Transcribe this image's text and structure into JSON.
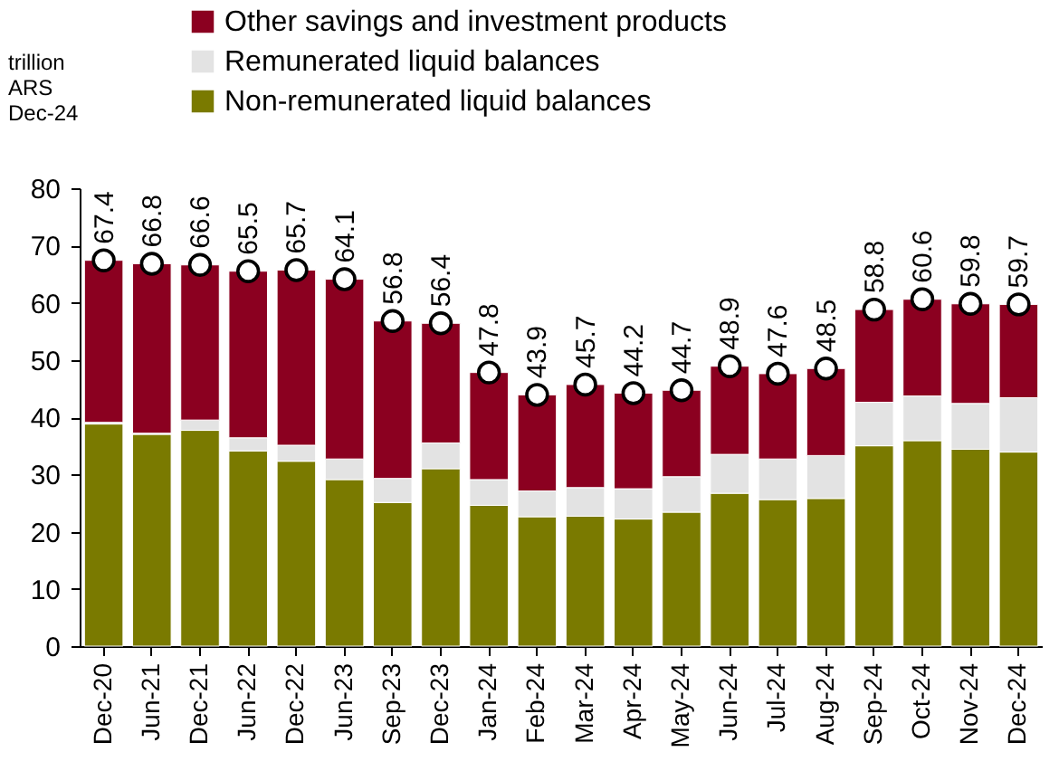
{
  "chart_data": {
    "type": "bar",
    "stacked": true,
    "ylabel": "trillion\nARS\nDec-24",
    "categories": [
      "Dec-20",
      "Jun-21",
      "Dec-21",
      "Jun-22",
      "Dec-22",
      "Jun-23",
      "Sep-23",
      "Dec-23",
      "Jan-24",
      "Feb-24",
      "Mar-24",
      "Apr-24",
      "May-24",
      "Jun-24",
      "Jul-24",
      "Aug-24",
      "Sep-24",
      "Oct-24",
      "Nov-24",
      "Dec-24"
    ],
    "series": [
      {
        "name": "Non-remunerated liquid balances",
        "color": "#7a7a00",
        "values": [
          38.8,
          37.0,
          37.7,
          34.1,
          32.3,
          29.1,
          25.1,
          31.0,
          24.6,
          22.6,
          22.7,
          22.2,
          23.4,
          26.7,
          25.6,
          25.8,
          35.0,
          35.9,
          34.4,
          33.9
        ]
      },
      {
        "name": "Remunerated liquid balances",
        "color": "#e3e3e3",
        "values": [
          0.3,
          0.2,
          1.8,
          2.3,
          2.8,
          3.6,
          4.2,
          4.5,
          4.5,
          4.5,
          5.0,
          5.3,
          6.2,
          6.8,
          7.1,
          7.5,
          7.6,
          7.8,
          8.0,
          9.5
        ]
      },
      {
        "name": "Other savings and investment products",
        "color": "#8b0020",
        "values": [
          28.3,
          29.6,
          27.1,
          29.1,
          30.6,
          31.4,
          27.5,
          20.9,
          18.7,
          16.8,
          18.0,
          16.7,
          15.1,
          15.4,
          14.9,
          15.2,
          16.2,
          16.9,
          17.4,
          16.3
        ]
      },
      {
        "type": "scatter",
        "color": "#ffffff",
        "values": [
          67.4,
          66.8,
          66.6,
          65.5,
          65.7,
          64.1,
          56.8,
          56.4,
          47.8,
          43.9,
          45.7,
          44.2,
          44.7,
          48.9,
          47.6,
          48.5,
          58.8,
          60.6,
          59.8,
          59.7
        ],
        "value_labels": [
          "67.4",
          "66.8",
          "66.6",
          "65.5",
          "65.7",
          "64.1",
          "56.8",
          "56.4",
          "47.8",
          "43.9",
          "45.7",
          "44.2",
          "44.7",
          "48.9",
          "47.6",
          "48.5",
          "58.8",
          "60.6",
          "59.8",
          "59.7"
        ]
      }
    ],
    "ylim": [
      0,
      80
    ],
    "yticks": [
      0,
      10,
      20,
      30,
      40,
      50,
      60,
      70,
      80
    ],
    "grid": false,
    "legend": "top left",
    "marker": "circle"
  }
}
